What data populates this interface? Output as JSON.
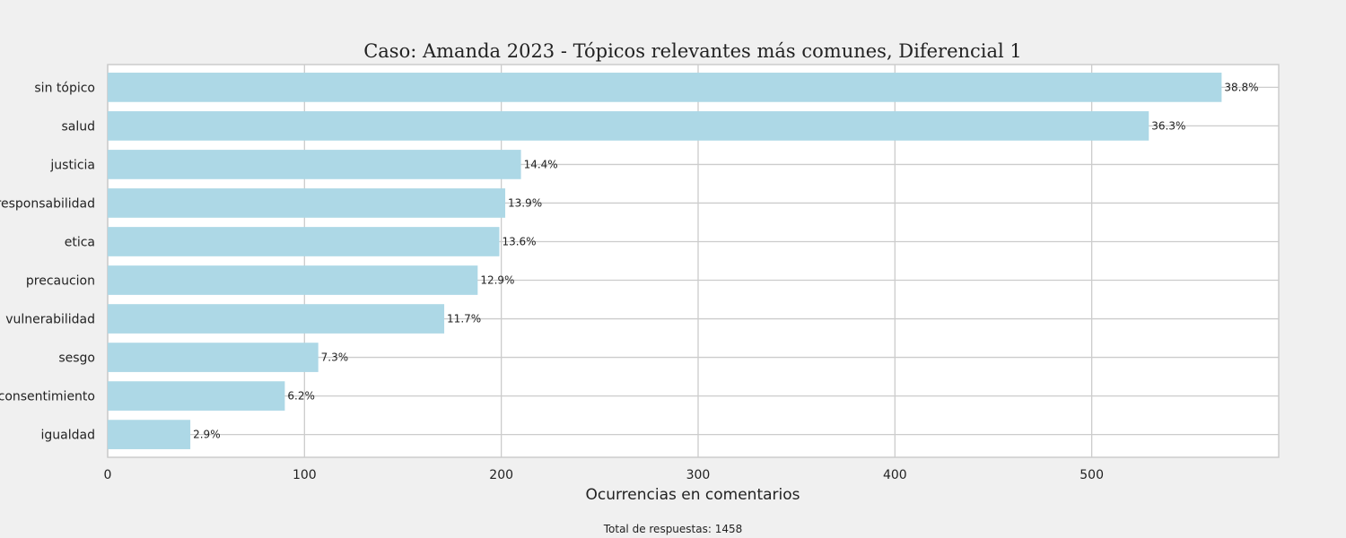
{
  "chart_data": {
    "type": "bar",
    "orientation": "horizontal",
    "title": "Caso: Amanda 2023 - Tópicos relevantes más comunes, Diferencial 1",
    "xlabel": "Ocurrencias en comentarios",
    "ylabel": "",
    "xlim": [
      0,
      595
    ],
    "xticks": [
      0,
      100,
      200,
      300,
      400,
      500
    ],
    "categories": [
      "sin tópico",
      "salud",
      "justicia",
      "responsabilidad",
      "etica",
      "precaucion",
      "vulnerabilidad",
      "sesgo",
      "consentimiento",
      "igualdad"
    ],
    "values": [
      566,
      529,
      210,
      202,
      199,
      188,
      171,
      107,
      90,
      42
    ],
    "labels": [
      "38.8%",
      "36.3%",
      "14.4%",
      "13.9%",
      "13.6%",
      "12.9%",
      "11.7%",
      "7.3%",
      "6.2%",
      "2.9%"
    ],
    "bar_color": "#add8e6",
    "grid": true,
    "footnote": "Total de respuestas: 1458"
  }
}
